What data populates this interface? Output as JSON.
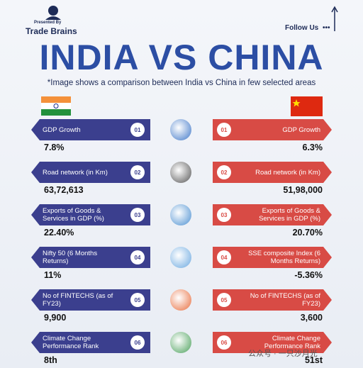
{
  "header": {
    "presented_by": "Presented By",
    "brand": "Trade Brains",
    "follow": "Follow Us"
  },
  "title": "INDIA VS CHINA",
  "subtitle": "*Image shows a comparison between India vs China in few selected areas",
  "rows": [
    {
      "number": "01",
      "india_label": "GDP Growth",
      "india_value": "7.8%",
      "china_label": "GDP Growth",
      "china_value": "6.3%"
    },
    {
      "number": "02",
      "india_label": "Road network (in Km)",
      "india_value": "63,72,613",
      "china_label": "Road network (in Km)",
      "china_value": "51,98,000"
    },
    {
      "number": "03",
      "india_label": "Exports of Goods & Services in GDP (%)",
      "india_value": "22.40%",
      "china_label": "Exports of Goods & Services in GDP (%)",
      "china_value": "20.70%"
    },
    {
      "number": "04",
      "india_label": "Nifty 50 (6 Months Returns)",
      "india_value": "11%",
      "china_label": "SSE composite Index (6 Months Returns)",
      "china_value": "-5.36%"
    },
    {
      "number": "05",
      "india_label": "No of FINTECHS (as of FY23)",
      "india_value": "9,900",
      "china_label": "No of FINTECHS (as of FY23)",
      "china_value": "3,600"
    },
    {
      "number": "06",
      "india_label": "Climate Change Performance Rank",
      "india_value": "8th",
      "china_label": "Climate Change Performance Rank",
      "china_value": "51st"
    }
  ],
  "watermark": "公众号 · 一只沙月光"
}
